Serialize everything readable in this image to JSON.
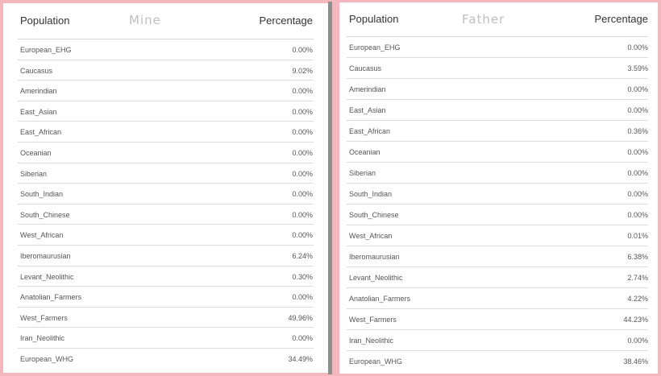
{
  "left": {
    "header": {
      "population": "Population",
      "tag": "Mine",
      "percentage": "Percentage"
    },
    "rows": [
      {
        "name": "European_EHG",
        "value": "0.00%"
      },
      {
        "name": "Caucasus",
        "value": "9.02%"
      },
      {
        "name": "Amerindian",
        "value": "0.00%"
      },
      {
        "name": "East_Asian",
        "value": "0.00%"
      },
      {
        "name": "East_African",
        "value": "0.00%"
      },
      {
        "name": "Oceanian",
        "value": "0.00%"
      },
      {
        "name": "Siberian",
        "value": "0.00%"
      },
      {
        "name": "South_Indian",
        "value": "0.00%"
      },
      {
        "name": "South_Chinese",
        "value": "0.00%"
      },
      {
        "name": "West_African",
        "value": "0.00%"
      },
      {
        "name": "Iberomaurusian",
        "value": "6.24%"
      },
      {
        "name": "Levant_Neolithic",
        "value": "0.30%"
      },
      {
        "name": "Anatolian_Farmers",
        "value": "0.00%"
      },
      {
        "name": "West_Farmers",
        "value": "49.96%"
      },
      {
        "name": "Iran_Neolithic",
        "value": "0.00%"
      },
      {
        "name": "European_WHG",
        "value": "34.49%"
      }
    ]
  },
  "right": {
    "header": {
      "population": "Population",
      "tag": "Father",
      "percentage": "Percentage"
    },
    "rows": [
      {
        "name": "European_EHG",
        "value": "0.00%"
      },
      {
        "name": "Caucasus",
        "value": "3.59%"
      },
      {
        "name": "Amerindian",
        "value": "0.00%"
      },
      {
        "name": "East_Asian",
        "value": "0.00%"
      },
      {
        "name": "East_African",
        "value": "0.36%"
      },
      {
        "name": "Oceanian",
        "value": "0.00%"
      },
      {
        "name": "Siberian",
        "value": "0.00%"
      },
      {
        "name": "South_Indian",
        "value": "0.00%"
      },
      {
        "name": "South_Chinese",
        "value": "0.00%"
      },
      {
        "name": "West_African",
        "value": "0.01%"
      },
      {
        "name": "Iberomaurusian",
        "value": "6.38%"
      },
      {
        "name": "Levant_Neolithic",
        "value": "2.74%"
      },
      {
        "name": "Anatolian_Farmers",
        "value": "4.22%"
      },
      {
        "name": "West_Farmers",
        "value": "44.23%"
      },
      {
        "name": "Iran_Neolithic",
        "value": "0.00%"
      },
      {
        "name": "European_WHG",
        "value": "38.46%"
      }
    ]
  }
}
